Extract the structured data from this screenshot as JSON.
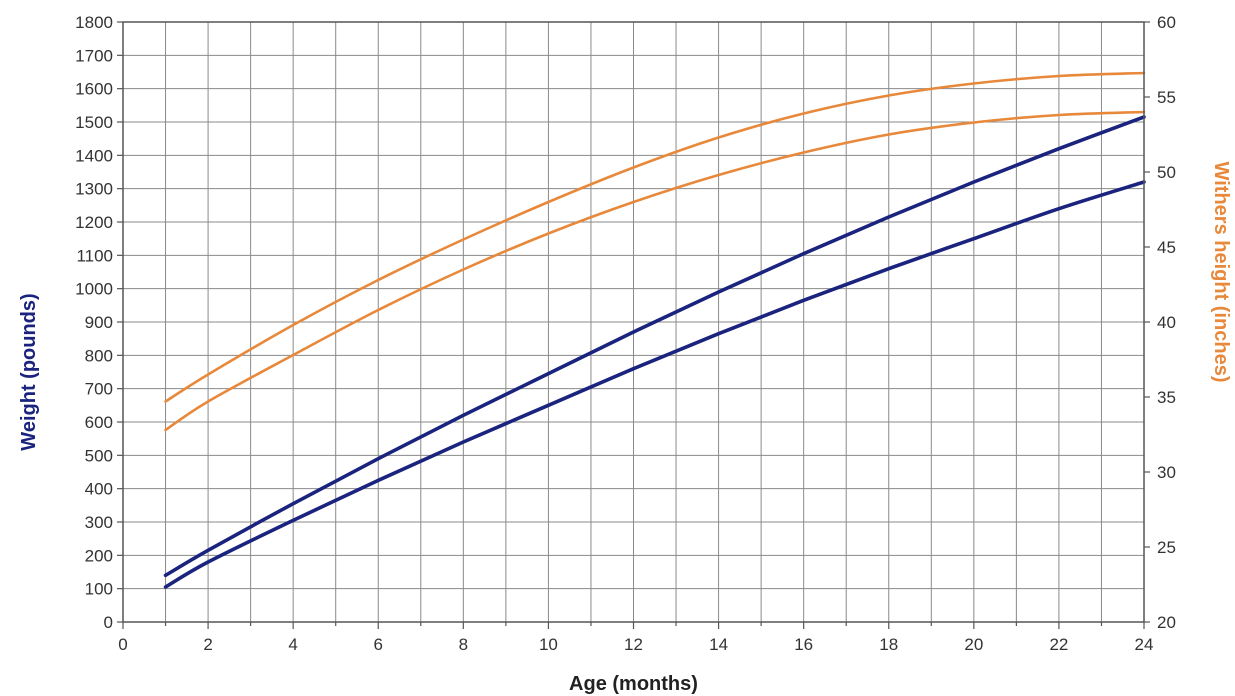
{
  "chart_data": {
    "type": "line",
    "title": "",
    "xlabel": "Age (months)",
    "ylabel": "Weight (pounds)",
    "y2label": "Withers height (inches)",
    "xlim": [
      0,
      24
    ],
    "ylim": [
      0,
      1800
    ],
    "y2lim": [
      20,
      60
    ],
    "xticks": [
      0,
      2,
      4,
      6,
      8,
      10,
      12,
      14,
      16,
      18,
      20,
      22,
      24
    ],
    "yticks": [
      0,
      100,
      200,
      300,
      400,
      500,
      600,
      700,
      800,
      900,
      1000,
      1100,
      1200,
      1300,
      1400,
      1500,
      1600,
      1700,
      1800
    ],
    "y2ticks": [
      20,
      25,
      30,
      35,
      40,
      45,
      50,
      55,
      60
    ],
    "grid": true,
    "legend": "none",
    "colors": {
      "weight": "#1a237e",
      "height": "#e8883a",
      "axis": "#555555"
    },
    "series": [
      {
        "axis": "left",
        "color": "#1a237e",
        "x": [
          1,
          2,
          4,
          6,
          8,
          10,
          12,
          14,
          16,
          18,
          20,
          22,
          24
        ],
        "values": [
          140,
          215,
          355,
          490,
          620,
          745,
          870,
          990,
          1105,
          1215,
          1320,
          1420,
          1515
        ]
      },
      {
        "axis": "left",
        "color": "#1a237e",
        "x": [
          1,
          2,
          4,
          6,
          8,
          10,
          12,
          14,
          16,
          18,
          20,
          22,
          24
        ],
        "values": [
          105,
          180,
          305,
          425,
          540,
          650,
          760,
          865,
          965,
          1060,
          1150,
          1240,
          1320
        ]
      },
      {
        "axis": "right",
        "color": "#e8883a",
        "x": [
          1,
          2,
          4,
          6,
          8,
          10,
          12,
          14,
          16,
          18,
          20,
          22,
          24
        ],
        "values": [
          34.7,
          36.5,
          39.8,
          42.8,
          45.5,
          48.0,
          50.3,
          52.3,
          53.9,
          55.1,
          55.9,
          56.4,
          56.6
        ]
      },
      {
        "axis": "right",
        "color": "#e8883a",
        "x": [
          1,
          2,
          4,
          6,
          8,
          10,
          12,
          14,
          16,
          18,
          20,
          22,
          24
        ],
        "values": [
          32.8,
          34.7,
          37.8,
          40.8,
          43.5,
          45.9,
          48.0,
          49.8,
          51.3,
          52.5,
          53.3,
          53.8,
          54.0
        ]
      }
    ]
  }
}
